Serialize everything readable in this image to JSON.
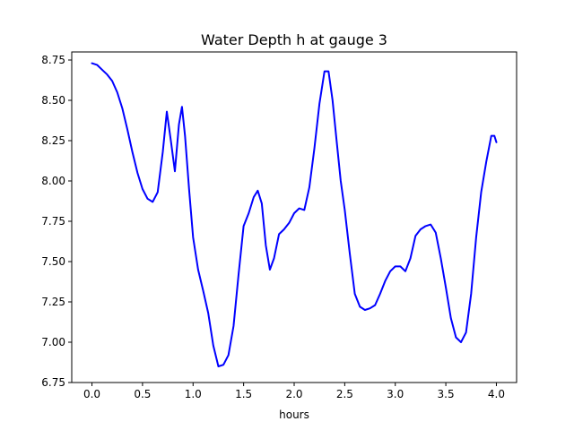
{
  "chart_data": {
    "type": "line",
    "title": "Water Depth h at gauge 3",
    "xlabel": "hours",
    "ylabel": "",
    "xlim": [
      -0.2,
      4.2
    ],
    "ylim": [
      6.75,
      8.8
    ],
    "xticks": [
      0.0,
      0.5,
      1.0,
      1.5,
      2.0,
      2.5,
      3.0,
      3.5,
      4.0
    ],
    "xtick_labels": [
      "0.0",
      "0.5",
      "1.0",
      "1.5",
      "2.0",
      "2.5",
      "3.0",
      "3.5",
      "4.0"
    ],
    "yticks": [
      6.75,
      7.0,
      7.25,
      7.5,
      7.75,
      8.0,
      8.25,
      8.5,
      8.75
    ],
    "ytick_labels": [
      "6.75",
      "7.00",
      "7.25",
      "7.50",
      "7.75",
      "8.00",
      "8.25",
      "8.50",
      "8.75"
    ],
    "grid": false,
    "legend": "none",
    "series": [
      {
        "color": "#0000ff",
        "x": [
          0.0,
          0.05,
          0.1,
          0.15,
          0.2,
          0.25,
          0.3,
          0.35,
          0.4,
          0.45,
          0.5,
          0.55,
          0.6,
          0.65,
          0.7,
          0.74,
          0.78,
          0.82,
          0.86,
          0.89,
          0.92,
          0.96,
          1.0,
          1.05,
          1.1,
          1.15,
          1.2,
          1.25,
          1.3,
          1.35,
          1.4,
          1.45,
          1.5,
          1.55,
          1.6,
          1.64,
          1.68,
          1.72,
          1.76,
          1.8,
          1.85,
          1.9,
          1.95,
          2.0,
          2.05,
          2.1,
          2.15,
          2.2,
          2.25,
          2.3,
          2.34,
          2.38,
          2.42,
          2.46,
          2.5,
          2.55,
          2.6,
          2.65,
          2.7,
          2.75,
          2.8,
          2.85,
          2.9,
          2.95,
          3.0,
          3.05,
          3.1,
          3.15,
          3.2,
          3.25,
          3.3,
          3.35,
          3.4,
          3.45,
          3.5,
          3.55,
          3.6,
          3.65,
          3.7,
          3.75,
          3.8,
          3.85,
          3.9,
          3.95,
          3.98,
          4.0
        ],
        "y": [
          8.73,
          8.72,
          8.69,
          8.66,
          8.62,
          8.55,
          8.45,
          8.32,
          8.18,
          8.05,
          7.95,
          7.89,
          7.87,
          7.93,
          8.18,
          8.43,
          8.25,
          8.06,
          8.35,
          8.46,
          8.28,
          7.95,
          7.65,
          7.45,
          7.32,
          7.18,
          6.98,
          6.85,
          6.86,
          6.92,
          7.1,
          7.42,
          7.72,
          7.8,
          7.9,
          7.94,
          7.86,
          7.6,
          7.45,
          7.52,
          7.67,
          7.7,
          7.74,
          7.8,
          7.83,
          7.82,
          7.96,
          8.2,
          8.48,
          8.68,
          8.68,
          8.5,
          8.25,
          8.0,
          7.82,
          7.55,
          7.3,
          7.22,
          7.2,
          7.21,
          7.23,
          7.3,
          7.38,
          7.44,
          7.47,
          7.47,
          7.44,
          7.52,
          7.66,
          7.7,
          7.72,
          7.73,
          7.68,
          7.52,
          7.34,
          7.15,
          7.03,
          7.0,
          7.06,
          7.3,
          7.65,
          7.93,
          8.12,
          8.28,
          8.28,
          8.24
        ]
      }
    ]
  }
}
